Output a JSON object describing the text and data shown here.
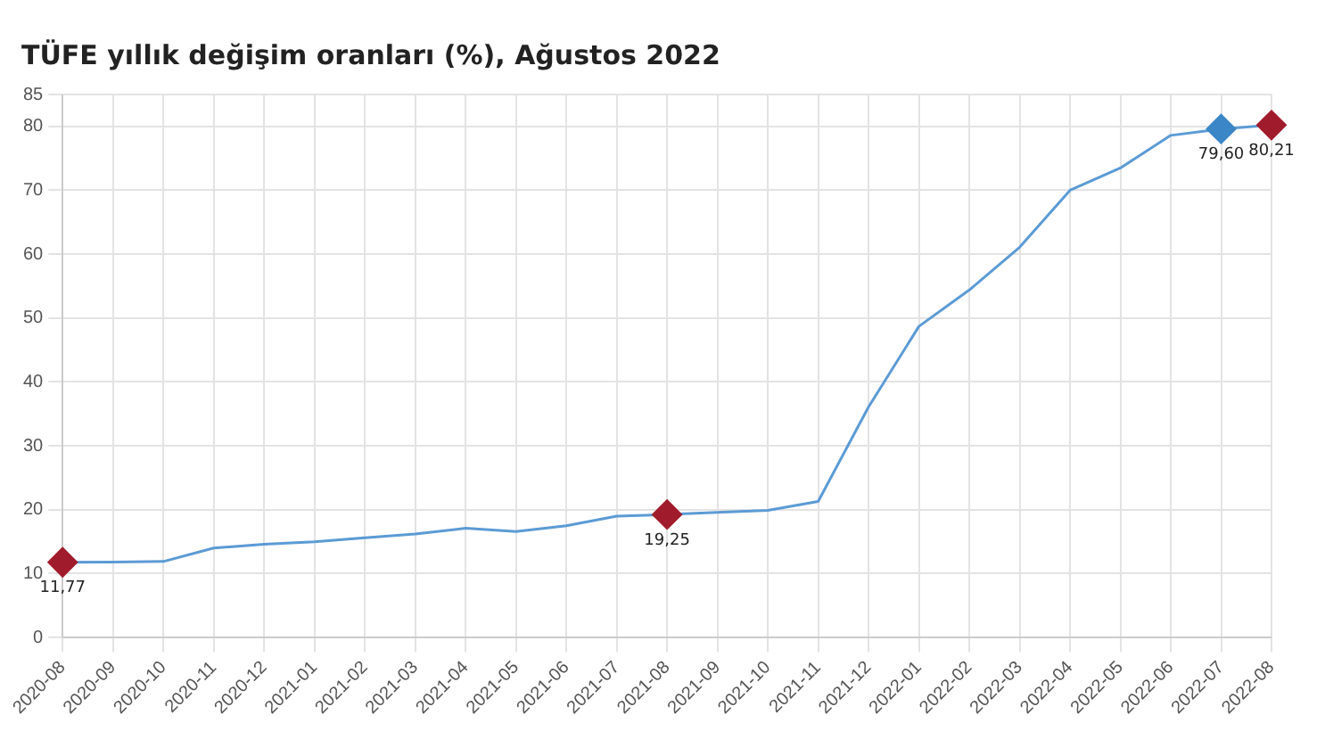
{
  "chart_data": {
    "type": "line",
    "title": "TÜFE yıllık değişim oranları (%), Ağustos 2022",
    "categories": [
      "2020-08",
      "2020-09",
      "2020-10",
      "2020-11",
      "2020-12",
      "2021-01",
      "2021-02",
      "2021-03",
      "2021-04",
      "2021-05",
      "2021-06",
      "2021-07",
      "2021-08",
      "2021-09",
      "2021-10",
      "2021-11",
      "2021-12",
      "2022-01",
      "2022-02",
      "2022-03",
      "2022-04",
      "2022-05",
      "2022-06",
      "2022-07",
      "2022-08"
    ],
    "series": [
      {
        "color": "#5b9bd5",
        "marker": "none",
        "values": [
          11.77,
          11.8,
          11.9,
          14.0,
          14.6,
          15.0,
          15.6,
          16.2,
          17.1,
          16.6,
          17.5,
          19.0,
          19.25,
          19.6,
          19.9,
          21.3,
          36.1,
          48.7,
          54.4,
          61.1,
          70.0,
          73.5,
          78.6,
          79.6,
          80.21
        ]
      },
      {
        "type": "scatter",
        "marker": "diamond",
        "values": [
          11.77,
          null,
          null,
          null,
          null,
          null,
          null,
          null,
          null,
          null,
          null,
          null,
          19.25,
          null,
          null,
          null,
          null,
          null,
          null,
          null,
          null,
          null,
          null,
          79.6,
          80.21
        ],
        "colors": [
          "#a01c2c",
          null,
          null,
          null,
          null,
          null,
          null,
          null,
          null,
          null,
          null,
          null,
          "#a01c2c",
          null,
          null,
          null,
          null,
          null,
          null,
          null,
          null,
          null,
          null,
          "#3a86c6",
          "#a01c2c"
        ],
        "value_labels": [
          "11,77",
          null,
          null,
          null,
          null,
          null,
          null,
          null,
          null,
          null,
          null,
          null,
          "19,25",
          null,
          null,
          null,
          null,
          null,
          null,
          null,
          null,
          null,
          null,
          "79,60",
          "80,21"
        ]
      }
    ],
    "ylim": [
      0,
      85
    ],
    "yticks": [
      0,
      10,
      20,
      30,
      40,
      50,
      60,
      70,
      80,
      85
    ],
    "grid": true,
    "legend": false
  }
}
